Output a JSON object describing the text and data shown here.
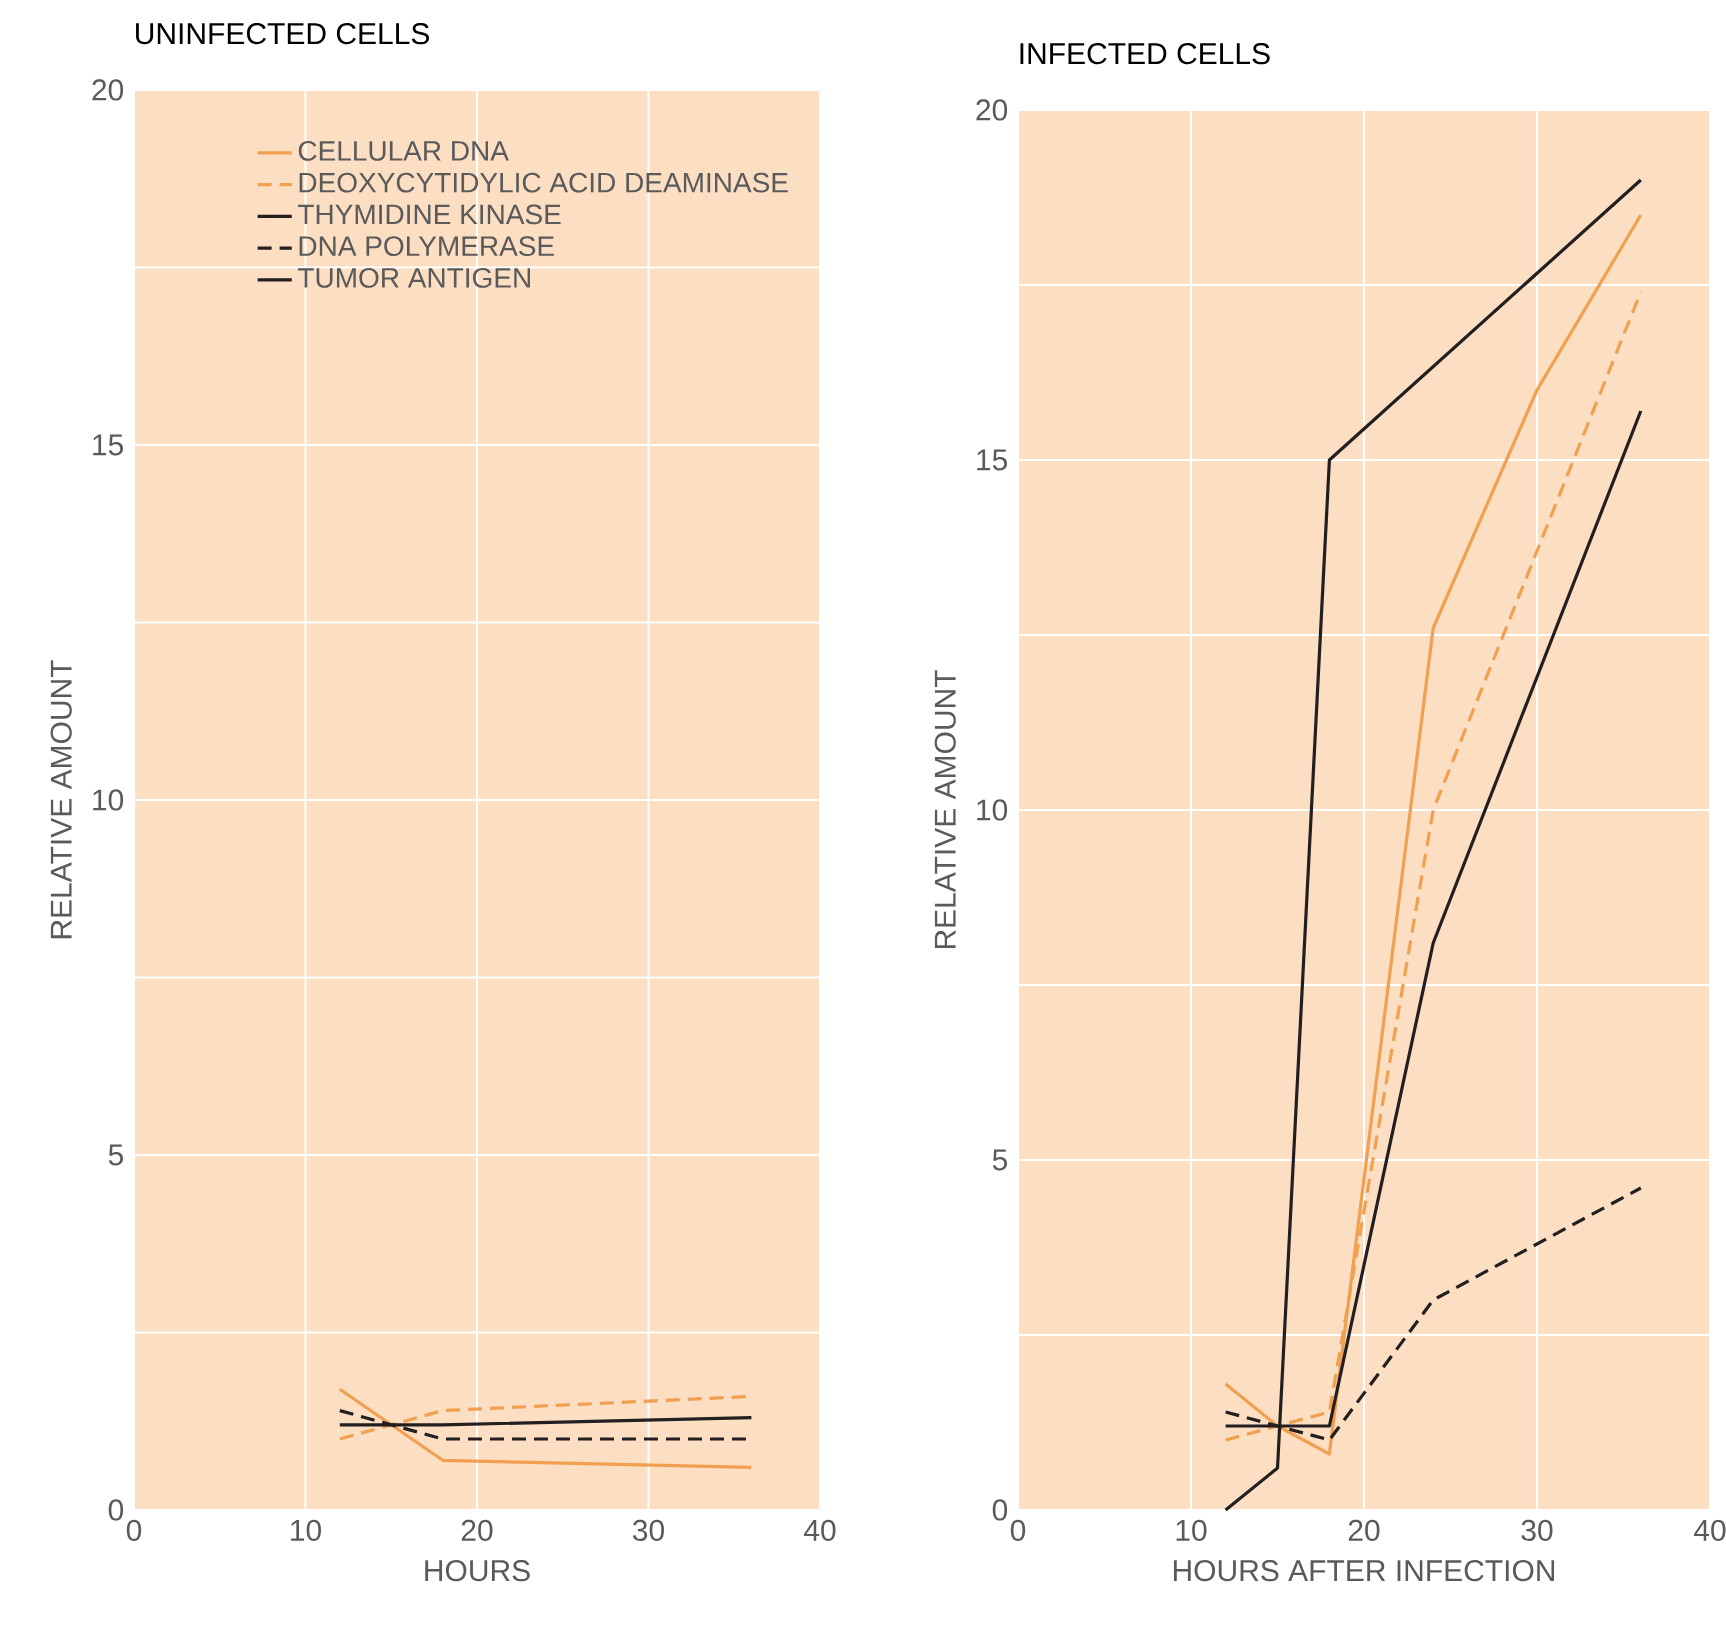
{
  "chart_data": [
    {
      "type": "line",
      "title": "UNINFECTED CELLS",
      "xlabel": "HOURS",
      "ylabel": "RELATIVE AMOUNT",
      "x": [
        12,
        15,
        18,
        36
      ],
      "series": [
        {
          "name": "CELLULAR DNA",
          "color": "#f0a050",
          "line_style": "solid",
          "values": [
            1.7,
            1.2,
            0.7,
            0.6
          ]
        },
        {
          "name": "DEOXYCYTIDYLIC ACID DEAMINASE",
          "color": "#f0a050",
          "line_style": "dashed",
          "values": [
            1.0,
            1.2,
            1.4,
            1.6
          ]
        },
        {
          "name": "THYMIDINE KINASE",
          "color": "#231f20",
          "line_style": "solid",
          "values": [
            1.2,
            1.2,
            1.2,
            1.3
          ]
        },
        {
          "name": "DNA POLYMERASE",
          "color": "#231f20",
          "line_style": "dashed",
          "values": [
            1.4,
            1.2,
            1.0,
            1.0
          ]
        },
        {
          "name": "TUMOR ANTIGEN",
          "color": "#231f20",
          "line_style": "solid",
          "values": [
            null,
            null,
            null,
            null
          ]
        }
      ],
      "xlim": [
        0,
        40
      ],
      "ylim": [
        0,
        20
      ],
      "xticks": [
        0,
        10,
        20,
        30,
        40
      ],
      "yticks": [
        0,
        {
          "value": 2.5,
          "label": null
        },
        5,
        {
          "value": 7.5,
          "label": null
        },
        10,
        {
          "value": 12.5,
          "label": null
        },
        15,
        {
          "value": 17.5,
          "label": null
        },
        20
      ],
      "grid": true,
      "legend": "top right"
    },
    {
      "type": "line",
      "title": "INFECTED CELLS",
      "xlabel": "HOURS AFTER INFECTION",
      "ylabel": "RELATIVE AMOUNT",
      "series": [
        {
          "color": "#f0a050",
          "line_style": "solid",
          "x": [
            12,
            15,
            18,
            24,
            30,
            36
          ],
          "values": [
            1.8,
            1.2,
            0.8,
            12.6,
            16.0,
            18.5
          ]
        },
        {
          "color": "#f0a050",
          "line_style": "dashed",
          "x": [
            12,
            15,
            18,
            24,
            36
          ],
          "values": [
            1.0,
            1.2,
            1.4,
            10.0,
            17.4
          ]
        },
        {
          "color": "#231f20",
          "line_style": "solid",
          "x": [
            12,
            15,
            18,
            24,
            36
          ],
          "values": [
            1.2,
            1.2,
            1.2,
            8.1,
            15.7
          ]
        },
        {
          "color": "#231f20",
          "line_style": "dashed",
          "x": [
            12,
            15,
            18,
            24,
            36
          ],
          "values": [
            1.4,
            1.2,
            1.0,
            3.0,
            4.6
          ]
        },
        {
          "color": "#231f20",
          "line_style": "solid",
          "x": [
            12,
            15,
            18,
            36
          ],
          "values": [
            0,
            0.6,
            15,
            19
          ]
        }
      ],
      "xlim": [
        0,
        40
      ],
      "ylim": [
        0,
        20
      ],
      "xticks": [
        0,
        10,
        20,
        30,
        40
      ],
      "yticks": [
        0,
        {
          "value": 2.5,
          "label": null
        },
        5,
        {
          "value": 7.5,
          "label": null
        },
        10,
        {
          "value": 12.5,
          "label": null
        },
        15,
        {
          "value": 17.5,
          "label": null
        },
        20
      ],
      "grid": true
    }
  ]
}
